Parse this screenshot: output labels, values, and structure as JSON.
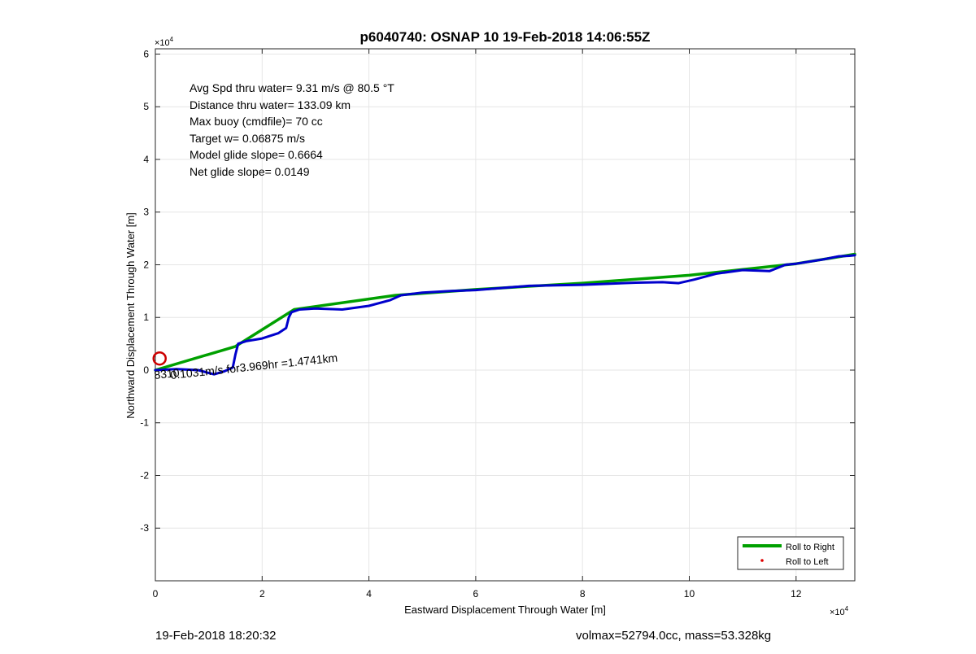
{
  "chart_data": {
    "type": "line",
    "title": "p6040740: OSNAP 10 19-Feb-2018 14:06:55Z",
    "xlabel": "Eastward Displacement Through Water [m]",
    "ylabel": "Northward Displacement Through Water [m]",
    "x_exponent_label": "×10",
    "x_exponent": "4",
    "y_exponent_label": "×10",
    "y_exponent": "4",
    "xlim": [
      0,
      13.1
    ],
    "ylim": [
      -4,
      6.1
    ],
    "x_ticks": [
      0,
      2,
      4,
      6,
      8,
      10,
      12
    ],
    "y_ticks": [
      -3,
      -2,
      -1,
      0,
      1,
      2,
      3,
      4,
      5,
      6
    ],
    "grid": true,
    "legend_position": "bottom-right",
    "legend": [
      {
        "label": "Roll to Right",
        "color": "#00a000",
        "marker": "line"
      },
      {
        "label": "Roll to Left",
        "color": "#e00000",
        "marker": "dot"
      }
    ],
    "annotations": [
      "Avg Spd thru water=  9.31 m/s @  80.5 °T",
      "Distance thru water= 133.09 km",
      "Max buoy (cmdfile)= 70 cc",
      "Target w= 0.06875 m/s",
      "Model glide slope= 0.6664",
      "Net glide slope= 0.0149"
    ],
    "current_label": "0.1031m/s for3.969hr =1.4741km",
    "current_label_underlay": "8310",
    "series": [
      {
        "color": "#00a000",
        "x": [
          0,
          1.5,
          2.6,
          4.5,
          6,
          8,
          10,
          12,
          13.1
        ],
        "y": [
          0,
          0.45,
          1.15,
          1.42,
          1.53,
          1.65,
          1.8,
          2.02,
          2.2
        ]
      },
      {
        "color": "#0000cc",
        "x": [
          0,
          0.4,
          0.8,
          1.1,
          1.3,
          1.45,
          1.5,
          1.55,
          1.7,
          2.0,
          2.3,
          2.45,
          2.5,
          2.55,
          2.7,
          3.0,
          3.5,
          4.0,
          4.4,
          4.6,
          5.0,
          5.5,
          6.0,
          7.0,
          8.0,
          9.0,
          9.5,
          9.8,
          10.1,
          10.5,
          11.0,
          11.5,
          11.8,
          12.0,
          12.5,
          12.8,
          13.0,
          13.1
        ],
        "y": [
          0,
          0.02,
          0.0,
          -0.08,
          -0.02,
          0.05,
          0.3,
          0.5,
          0.55,
          0.6,
          0.7,
          0.8,
          1.0,
          1.1,
          1.15,
          1.17,
          1.15,
          1.22,
          1.33,
          1.42,
          1.47,
          1.5,
          1.52,
          1.6,
          1.62,
          1.66,
          1.67,
          1.65,
          1.72,
          1.83,
          1.9,
          1.88,
          2.0,
          2.02,
          2.1,
          2.16,
          2.17,
          2.18
        ]
      }
    ],
    "start_marker": {
      "x": 0.08,
      "y": 0.22,
      "color": "#cc0000"
    }
  },
  "footer": {
    "left": "19-Feb-2018 18:20:32",
    "right": "volmax=52794.0cc, mass=53.328kg"
  }
}
